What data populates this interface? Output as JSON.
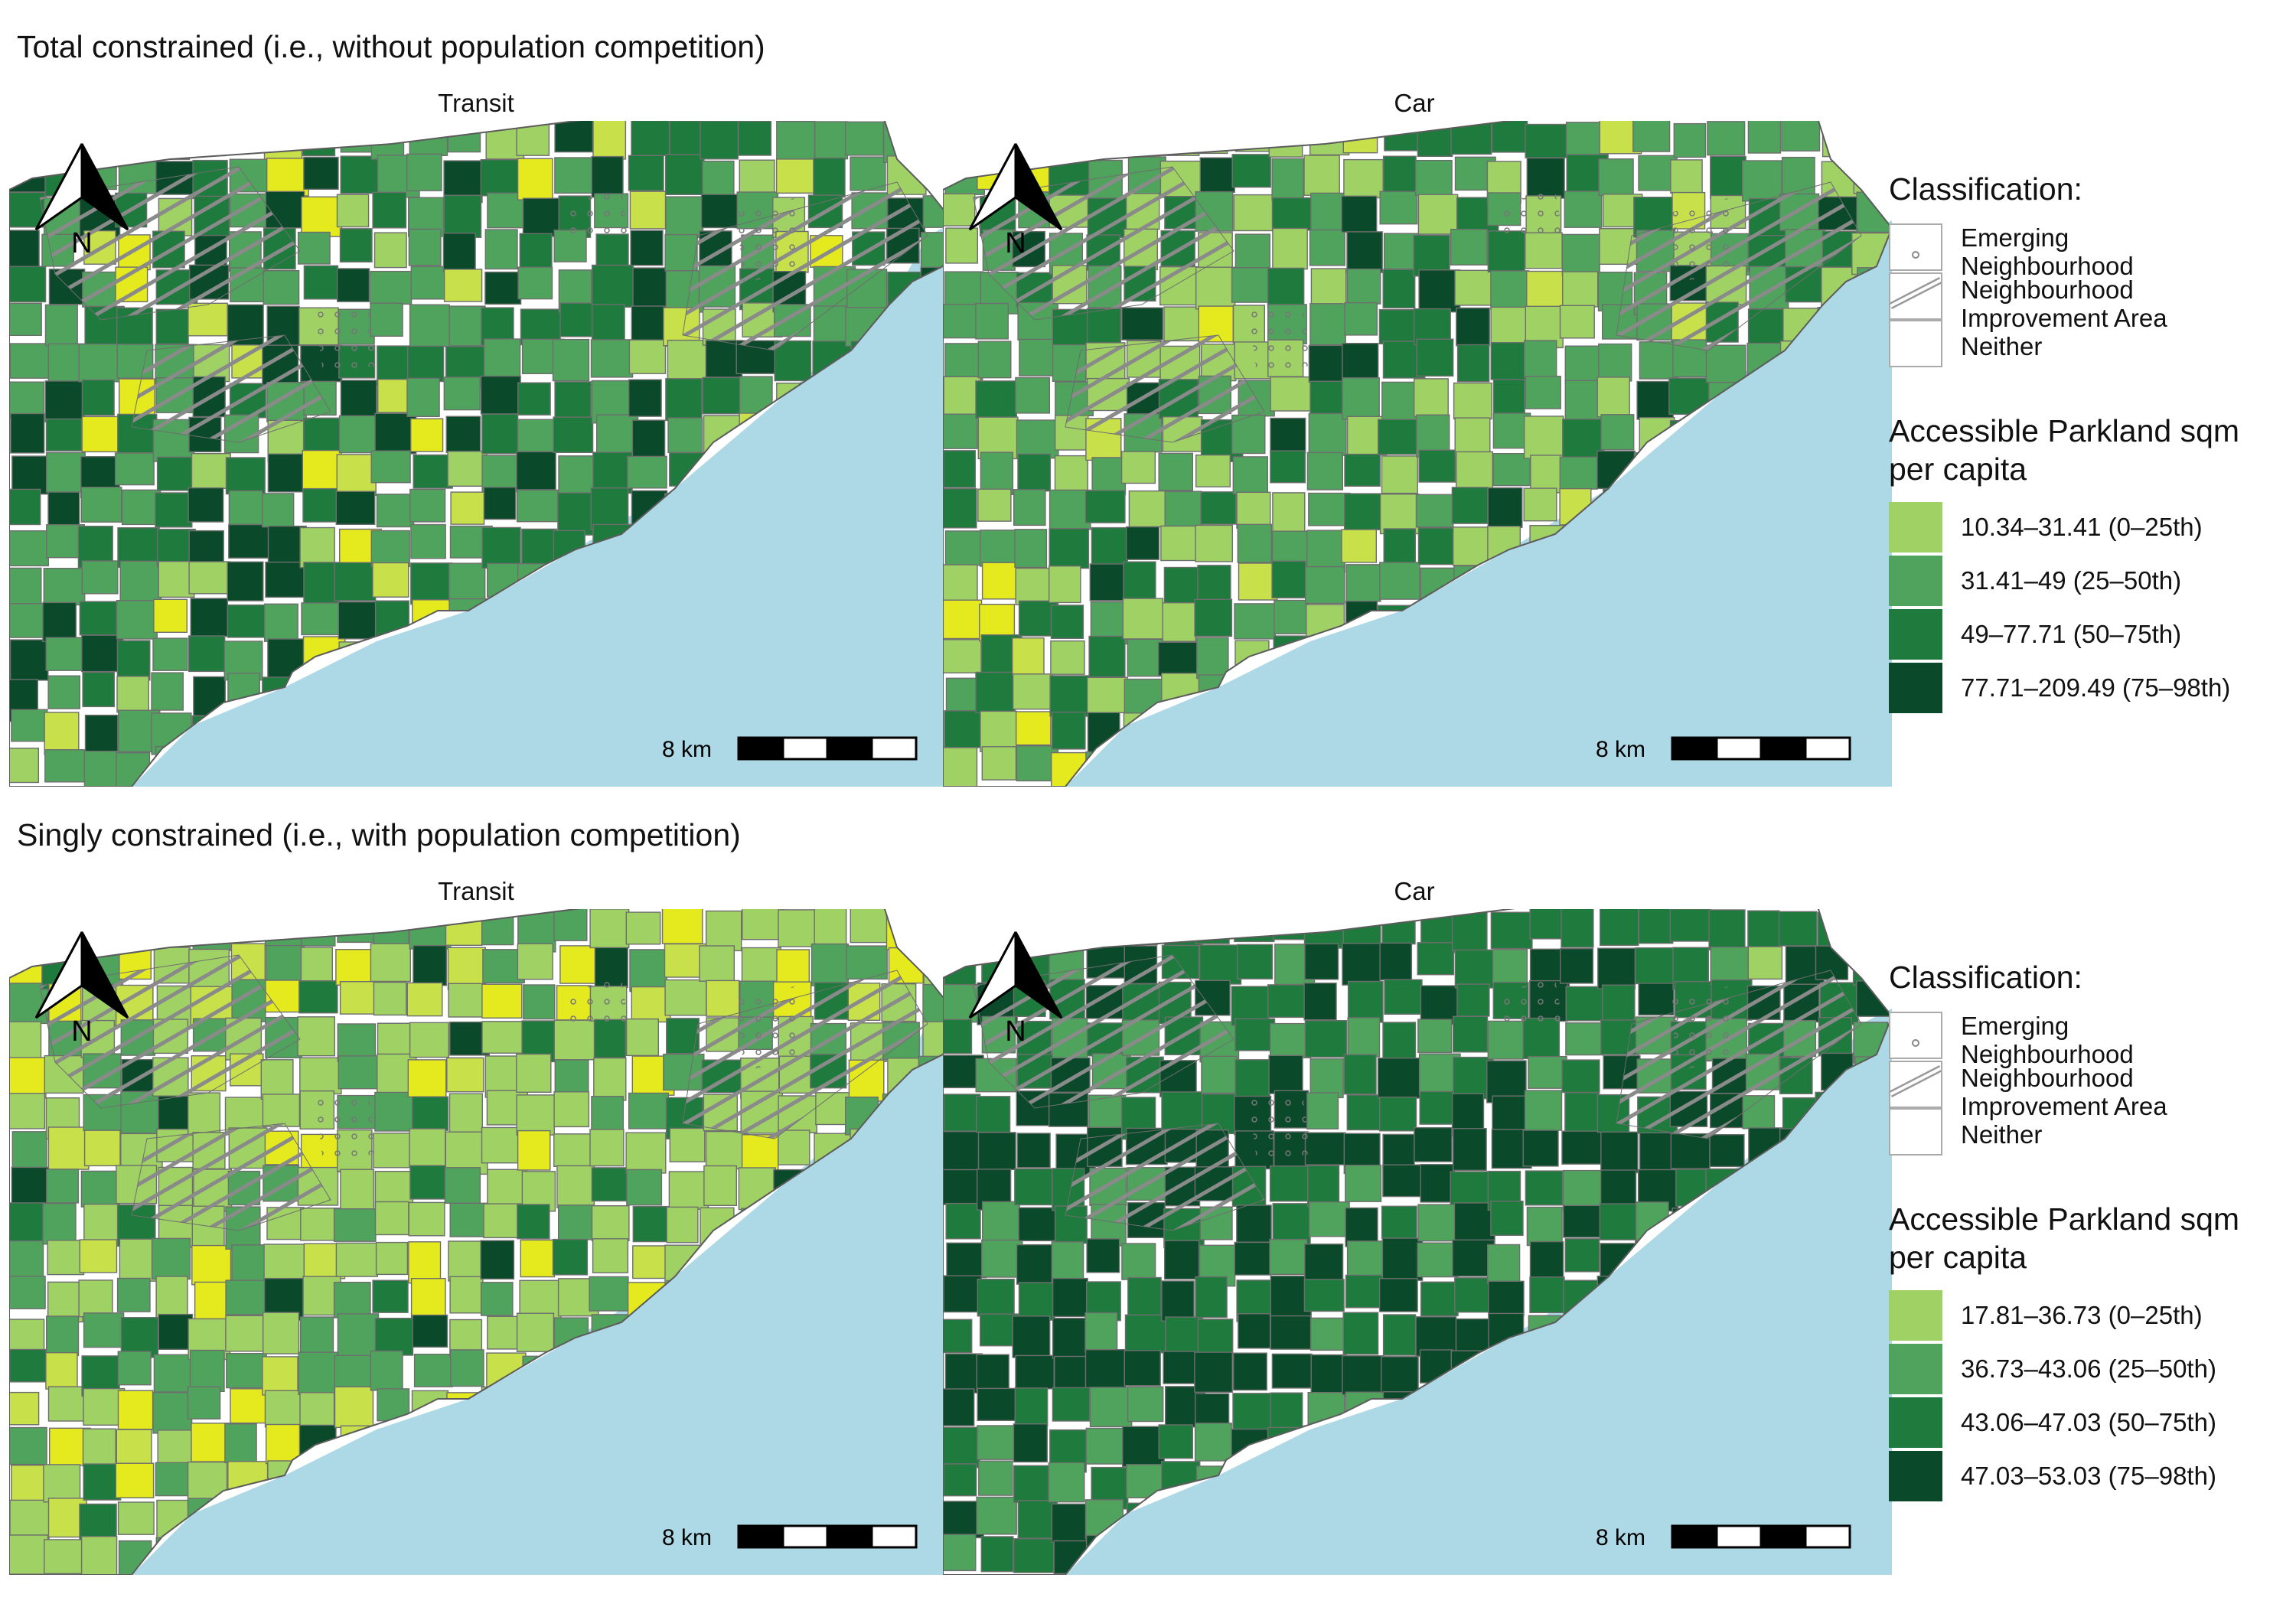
{
  "sections": [
    {
      "title": "Total constrained (i.e., without population competition)"
    },
    {
      "title": "Singly constrained (i.e., with population competition)"
    }
  ],
  "panels": [
    {
      "mode": "Transit"
    },
    {
      "mode": "Car"
    },
    {
      "mode": "Transit"
    },
    {
      "mode": "Car"
    }
  ],
  "north_label": "N",
  "scale_label": "8 km",
  "legends": [
    {
      "classification_title": "Classification:",
      "classes": [
        {
          "label": "Emerging\nNeighbourhood",
          "pattern": "dots"
        },
        {
          "label": "Neighbourhood\nImprovement Area",
          "pattern": "hatch"
        },
        {
          "label": "Neither",
          "pattern": "none"
        }
      ],
      "value_title": "Accessible Parkland sqm\nper capita",
      "bins": [
        {
          "label": "10.34–31.41 (0–25th)",
          "color": "#9fd164"
        },
        {
          "label": "31.41–49 (25–50th)",
          "color": "#4fa35d"
        },
        {
          "label": "49–77.71 (50–75th)",
          "color": "#1e7a3d"
        },
        {
          "label": "77.71–209.49 (75–98th)",
          "color": "#0a4a2a"
        }
      ]
    },
    {
      "classification_title": "Classification:",
      "classes": [
        {
          "label": "Emerging\nNeighbourhood",
          "pattern": "dots"
        },
        {
          "label": "Neighbourhood\nImprovement Area",
          "pattern": "hatch"
        },
        {
          "label": "Neither",
          "pattern": "none"
        }
      ],
      "value_title": "Accessible Parkland sqm\nper capita",
      "bins": [
        {
          "label": "17.81–36.73 (0–25th)",
          "color": "#9fd164"
        },
        {
          "label": "36.73–43.06 (25–50th)",
          "color": "#4fa35d"
        },
        {
          "label": "43.06–47.03 (50–75th)",
          "color": "#1e7a3d"
        },
        {
          "label": "47.03–53.03 (75–98th)",
          "color": "#0a4a2a"
        }
      ]
    }
  ],
  "colors": {
    "lake": "#add8e6",
    "boundary": "#6e6e6e",
    "highlight_yellow": "#e4ea1e",
    "yellow_green": "#c8e04a"
  }
}
